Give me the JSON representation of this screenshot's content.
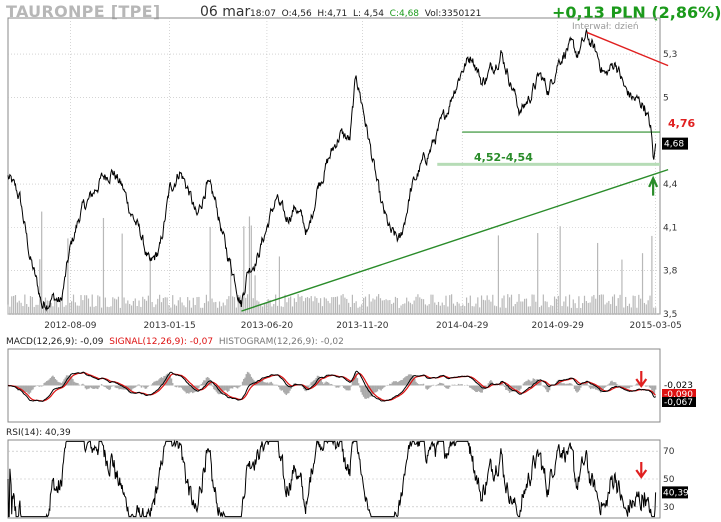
{
  "header": {
    "ticker": "TAURONPE [TPE]",
    "date": "06 mar",
    "ohlc": {
      "time": "18:07",
      "open": "O:4,56",
      "high": "H:4,71",
      "low": "L: 4,54",
      "close": "C:4,68",
      "volume": "Vol:3350121"
    },
    "change": "+0,13 PLN (2,86%)",
    "interval": "Interwał: dzień"
  },
  "colors": {
    "price_line": "#000000",
    "volume": "#b8b8b8",
    "support": "#2a8c2a",
    "support_band": "#b6dcb6",
    "resistance": "#e02020",
    "macd_line": "#000000",
    "signal_line": "#dd1111",
    "histogram": "#aaaaaa",
    "grid": "#bbbbbb"
  },
  "chart_data": [
    {
      "type": "line",
      "name": "price",
      "x_ticks": [
        "2012-08-09",
        "2013-01-15",
        "2013-06-20",
        "2013-11-20",
        "2014-04-29",
        "2014-09-29",
        "2015-03-05"
      ],
      "y_ticks": [
        "5,3",
        "5",
        "4,68",
        "4,4",
        "4,1",
        "3,8",
        "3,5"
      ],
      "ylim": [
        3.5,
        5.55
      ],
      "anchors": [
        [
          "2012-05-01",
          4.45
        ],
        [
          "2012-05-20",
          4.3
        ],
        [
          "2012-06-05",
          3.9
        ],
        [
          "2012-06-25",
          3.56
        ],
        [
          "2012-07-10",
          3.62
        ],
        [
          "2012-07-25",
          3.58
        ],
        [
          "2012-08-09",
          3.95
        ],
        [
          "2012-08-25",
          4.2
        ],
        [
          "2012-09-10",
          4.3
        ],
        [
          "2012-09-25",
          4.42
        ],
        [
          "2012-10-15",
          4.5
        ],
        [
          "2012-10-31",
          4.38
        ],
        [
          "2012-11-15",
          4.2
        ],
        [
          "2012-11-30",
          4.05
        ],
        [
          "2012-12-15",
          3.82
        ],
        [
          "2012-12-31",
          3.95
        ],
        [
          "2013-01-15",
          4.35
        ],
        [
          "2013-01-31",
          4.5
        ],
        [
          "2013-02-15",
          4.35
        ],
        [
          "2013-02-28",
          4.15
        ],
        [
          "2013-03-15",
          4.4
        ],
        [
          "2013-03-31",
          4.25
        ],
        [
          "2013-04-15",
          3.95
        ],
        [
          "2013-04-30",
          3.75
        ],
        [
          "2013-05-10",
          3.58
        ],
        [
          "2013-05-20",
          3.8
        ],
        [
          "2013-06-05",
          3.9
        ],
        [
          "2013-06-20",
          4.1
        ],
        [
          "2013-07-05",
          4.3
        ],
        [
          "2013-07-20",
          4.15
        ],
        [
          "2013-08-05",
          4.25
        ],
        [
          "2013-08-25",
          4.05
        ],
        [
          "2013-09-10",
          4.4
        ],
        [
          "2013-09-30",
          4.6
        ],
        [
          "2013-10-15",
          4.75
        ],
        [
          "2013-10-31",
          4.7
        ],
        [
          "2013-11-10",
          5.15
        ],
        [
          "2013-11-20",
          4.95
        ],
        [
          "2013-12-05",
          4.6
        ],
        [
          "2013-12-20",
          4.25
        ],
        [
          "2014-01-05",
          4.05
        ],
        [
          "2014-01-20",
          4.0
        ],
        [
          "2014-02-05",
          4.35
        ],
        [
          "2014-02-20",
          4.5
        ],
        [
          "2014-03-10",
          4.65
        ],
        [
          "2014-03-31",
          4.85
        ],
        [
          "2014-04-15",
          5.05
        ],
        [
          "2014-04-29",
          5.2
        ],
        [
          "2014-05-15",
          5.3
        ],
        [
          "2014-05-31",
          5.1
        ],
        [
          "2014-06-15",
          5.2
        ],
        [
          "2014-06-30",
          5.32
        ],
        [
          "2014-07-15",
          5.12
        ],
        [
          "2014-07-31",
          4.9
        ],
        [
          "2014-08-15",
          5.0
        ],
        [
          "2014-08-31",
          5.15
        ],
        [
          "2014-09-15",
          5.05
        ],
        [
          "2014-09-29",
          5.25
        ],
        [
          "2014-10-15",
          5.35
        ],
        [
          "2014-10-31",
          5.3
        ],
        [
          "2014-11-15",
          5.42
        ],
        [
          "2014-11-30",
          5.3
        ],
        [
          "2014-12-15",
          5.15
        ],
        [
          "2014-12-31",
          5.25
        ],
        [
          "2015-01-15",
          5.05
        ],
        [
          "2015-01-31",
          4.98
        ],
        [
          "2015-02-15",
          4.95
        ],
        [
          "2015-02-25",
          4.78
        ],
        [
          "2015-03-02",
          4.55
        ],
        [
          "2015-03-05",
          4.68
        ]
      ],
      "current_price_label": "4,68",
      "annotations": {
        "resistance_label": "4,76",
        "support_band_label": "4,52-4,54",
        "support_band_range": [
          4.52,
          4.54
        ],
        "resistance_level": 4.76
      },
      "trendlines": [
        {
          "kind": "uptrend",
          "from": [
            "2013-05-10",
            3.52
          ],
          "to": [
            "2015-03-25",
            4.5
          ]
        },
        {
          "kind": "downtrend",
          "from": [
            "2014-11-15",
            5.45
          ],
          "to": [
            "2015-03-25",
            5.22
          ]
        }
      ]
    },
    {
      "type": "line",
      "name": "MACD(12,26,9)",
      "legend": {
        "macd": "MACD(12,26,9): -0,09",
        "signal": "SIGNAL(12,26,9): -0,07",
        "histogram": "HISTOGRAM(12,26,9): -0,02"
      },
      "value_labels": [
        "-0,023",
        "-0,090",
        "-0,067"
      ],
      "ylim": [
        -0.3,
        0.3
      ]
    },
    {
      "type": "line",
      "name": "RSI(14)",
      "legend": "RSI(14): 40,39",
      "y_ticks": [
        "70",
        "50",
        "30"
      ],
      "ylim": [
        22,
        78
      ],
      "current_value": "40,39"
    }
  ]
}
